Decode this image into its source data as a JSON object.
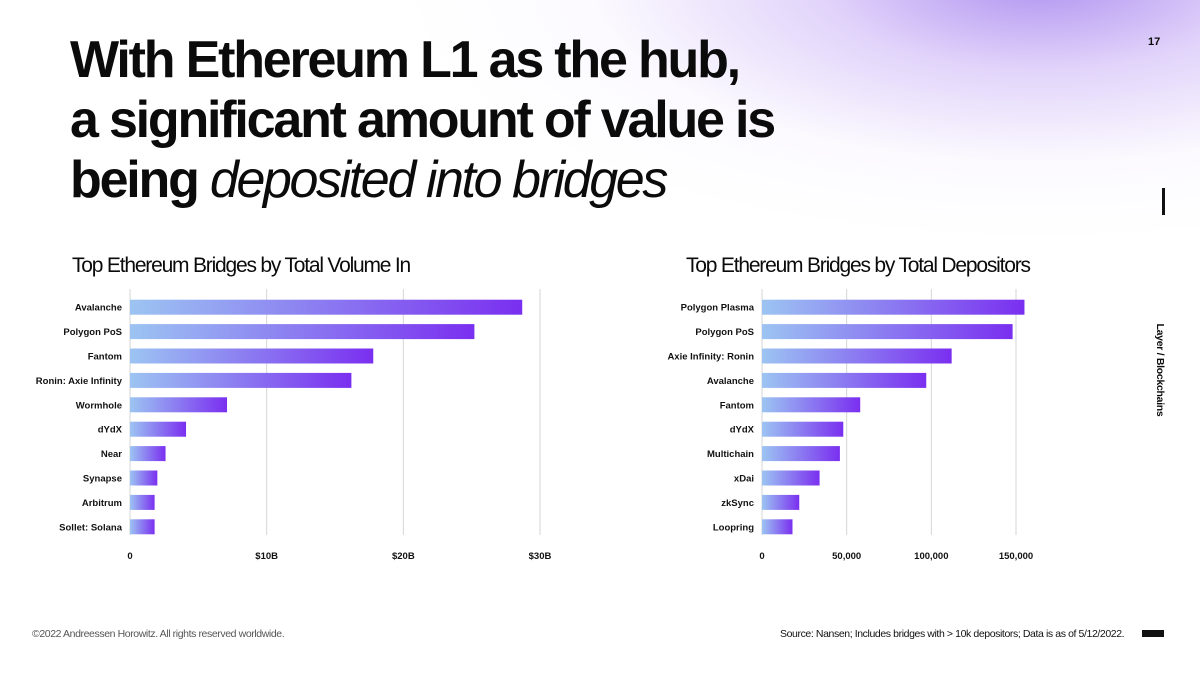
{
  "page_number": "17",
  "headline": {
    "line1": "With Ethereum L1 as the hub,",
    "line2": "a significant amount of value is",
    "line3_bold": "being",
    "line3_italic": "deposited into bridges"
  },
  "side_label": "Layer / Blockchains",
  "footer": {
    "copyright": "©2022 Andreessen Horowitz. All rights reserved worldwide.",
    "source": "Source: Nansen; Includes bridges with > 10k depositors; Data is as of 5/12/2022."
  },
  "colors": {
    "bar_start": "#9cc4f2",
    "bar_end": "#7a2ff0",
    "gridline": "#d6d6d6"
  },
  "chart_data": [
    {
      "type": "bar",
      "orientation": "horizontal",
      "title": "Top Ethereum Bridges by Total Volume In",
      "categories": [
        "Avalanche",
        "Polygon PoS",
        "Fantom",
        "Ronin: Axie Infinity",
        "Wormhole",
        "dYdX",
        "Near",
        "Synapse",
        "Arbitrum",
        "Sollet: Solana"
      ],
      "values": [
        28.7,
        25.2,
        17.8,
        16.2,
        7.1,
        4.1,
        2.6,
        2.0,
        1.8,
        1.8
      ],
      "value_unit": "$B",
      "xlim": [
        0,
        30
      ],
      "ticks": [
        0,
        10,
        20,
        30
      ],
      "tick_labels": [
        "0",
        "$10B",
        "$20B",
        "$30B"
      ],
      "grid": true
    },
    {
      "type": "bar",
      "orientation": "horizontal",
      "title": "Top Ethereum Bridges  by Total Depositors",
      "categories": [
        "Polygon Plasma",
        "Polygon PoS",
        "Axie Infinity: Ronin",
        "Avalanche",
        "Fantom",
        "dYdX",
        "Multichain",
        "xDai",
        "zkSync",
        "Loopring"
      ],
      "values": [
        155000,
        148000,
        112000,
        97000,
        58000,
        48000,
        46000,
        34000,
        22000,
        18000
      ],
      "xlim": [
        0,
        150000
      ],
      "ticks": [
        0,
        50000,
        100000,
        150000
      ],
      "tick_labels": [
        "0",
        "50,000",
        "100,000",
        "150,000"
      ],
      "grid": true
    }
  ]
}
